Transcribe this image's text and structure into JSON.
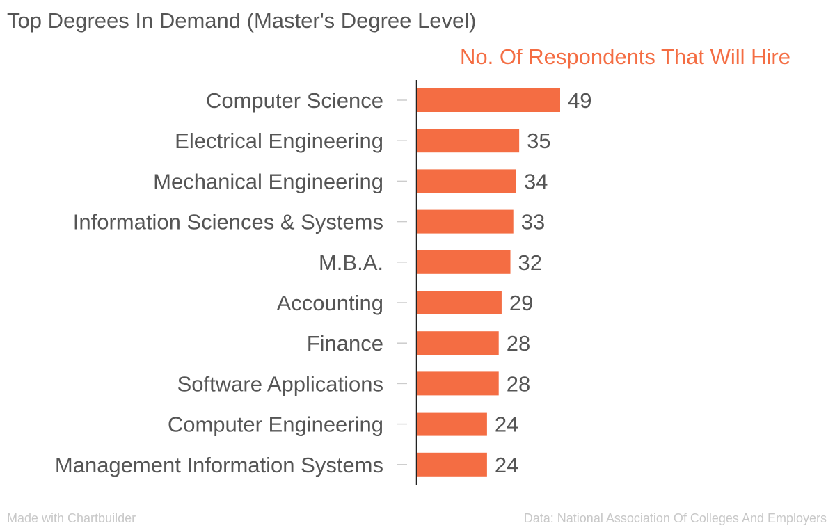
{
  "title": "Top Degrees In Demand (Master's Degree Level)",
  "footer": {
    "left": "Made with Chartbuilder",
    "right": "Data: National Association Of Colleges And Employers"
  },
  "chart_data": {
    "type": "bar",
    "orientation": "horizontal",
    "title": "Top Degrees In Demand (Master's Degree Level)",
    "categories": [
      "Computer Science",
      "Electrical Engineering",
      "Mechanical Engineering",
      "Information Sciences & Systems",
      "M.B.A.",
      "Accounting",
      "Finance",
      "Software Applications",
      "Computer Engineering",
      "Management Information Systems"
    ],
    "series": [
      {
        "name": "No. Of Respondents That Will Hire",
        "values": [
          49,
          35,
          34,
          33,
          32,
          29,
          28,
          28,
          24,
          24
        ],
        "color": "#f46d43"
      }
    ],
    "xlim": [
      0,
      49
    ],
    "grid": false,
    "data_labels": true,
    "colors": {
      "bar": "#f46d43",
      "series_label": "#f46d43",
      "text": "#555555",
      "axis": "#222222",
      "tick": "#cccccc"
    }
  }
}
